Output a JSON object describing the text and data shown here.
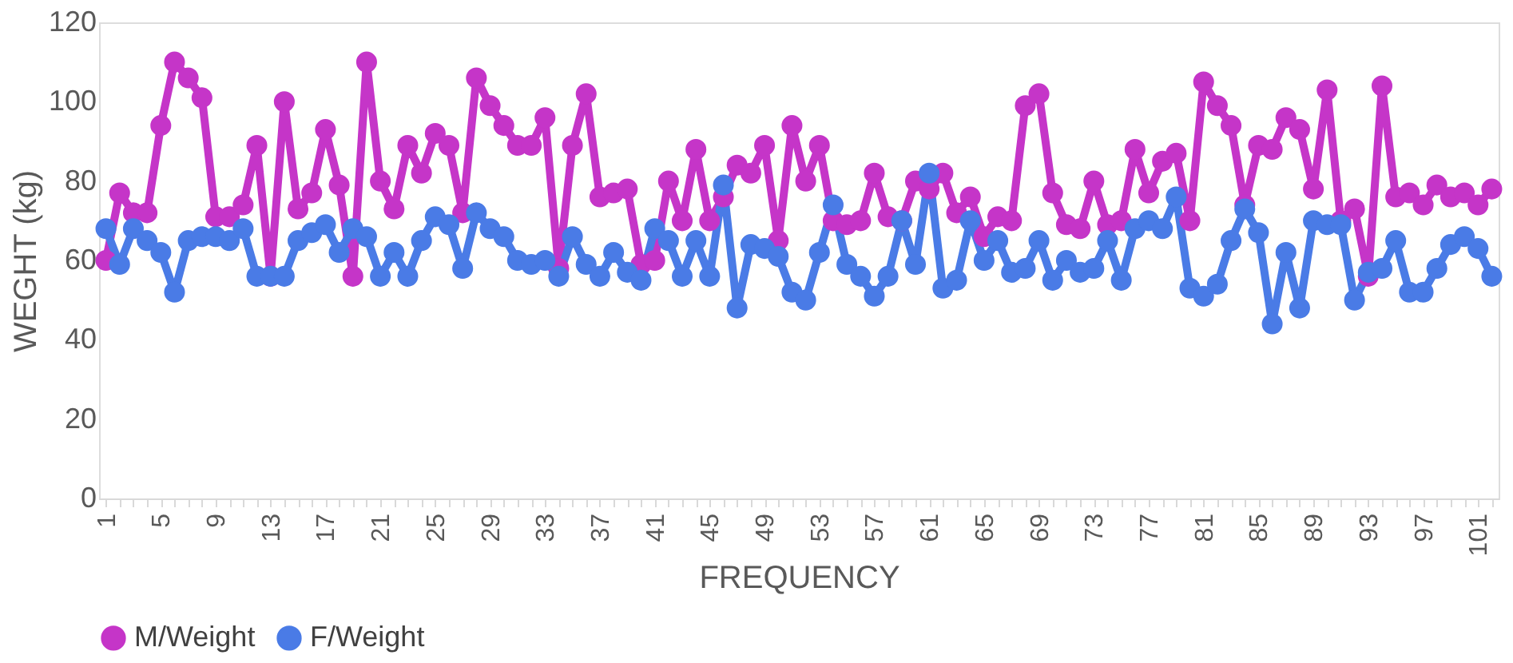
{
  "chart_data": {
    "type": "line",
    "xlabel": "FREQUENCY",
    "ylabel": "WEGHT (kg)",
    "categories": [
      "1",
      null,
      null,
      null,
      "5",
      null,
      null,
      null,
      "9",
      null,
      null,
      null,
      "13",
      null,
      null,
      null,
      "17",
      null,
      null,
      null,
      "21",
      null,
      null,
      null,
      "25",
      null,
      null,
      null,
      "29",
      null,
      null,
      null,
      "33",
      null,
      null,
      null,
      "37",
      null,
      null,
      null,
      "41",
      null,
      null,
      null,
      "45",
      null,
      null,
      null,
      "49",
      null,
      null,
      null,
      "53",
      null,
      null,
      null,
      "57",
      null,
      null,
      null,
      "61",
      null,
      null,
      null,
      "65",
      null,
      null,
      null,
      "69",
      null,
      null,
      null,
      "73",
      null,
      null,
      null,
      "77",
      null,
      null,
      null,
      "81",
      null,
      null,
      null,
      "85",
      null,
      null,
      null,
      "89",
      null,
      null,
      null,
      "93",
      null,
      null,
      null,
      "97",
      null,
      null,
      null,
      "101",
      null
    ],
    "series": [
      {
        "name": "M/Weight",
        "color": "#c535c8",
        "values": [
          60,
          77,
          72,
          72,
          94,
          110,
          106,
          101,
          71,
          71,
          74,
          89,
          56,
          100,
          73,
          77,
          93,
          79,
          56,
          110,
          80,
          73,
          89,
          82,
          92,
          89,
          72,
          106,
          99,
          94,
          89,
          89,
          96,
          58,
          89,
          102,
          76,
          77,
          78,
          59,
          60,
          80,
          70,
          88,
          70,
          76,
          84,
          82,
          89,
          65,
          94,
          80,
          89,
          70,
          69,
          70,
          82,
          71,
          70,
          80,
          78,
          82,
          72,
          76,
          66,
          71,
          70,
          99,
          102,
          77,
          69,
          68,
          80,
          69,
          70,
          88,
          77,
          85,
          87,
          70,
          105,
          99,
          94,
          74,
          89,
          88,
          96,
          93,
          78,
          103,
          70,
          73,
          56,
          104,
          76,
          77,
          74,
          79,
          76,
          77,
          74,
          78
        ]
      },
      {
        "name": "F/Weight",
        "color": "#4a7be6",
        "values": [
          68,
          59,
          68,
          65,
          62,
          52,
          65,
          66,
          66,
          65,
          68,
          56,
          56,
          56,
          65,
          67,
          69,
          62,
          68,
          66,
          56,
          62,
          56,
          65,
          71,
          69,
          58,
          72,
          68,
          66,
          60,
          59,
          60,
          56,
          66,
          59,
          56,
          62,
          57,
          55,
          68,
          65,
          56,
          65,
          56,
          79,
          48,
          64,
          63,
          61,
          52,
          50,
          62,
          74,
          59,
          56,
          51,
          56,
          70,
          59,
          82,
          53,
          55,
          70,
          60,
          65,
          57,
          58,
          65,
          55,
          60,
          57,
          58,
          65,
          55,
          68,
          70,
          68,
          76,
          53,
          51,
          54,
          65,
          73,
          67,
          44,
          62,
          48,
          70,
          69,
          69,
          50,
          57,
          58,
          65,
          52,
          52,
          58,
          64,
          66,
          63,
          56
        ]
      }
    ],
    "ylim": [
      0,
      120
    ],
    "yticks": [
      0,
      20,
      40,
      60,
      80,
      100,
      120
    ],
    "grid": false,
    "legend": "bottom",
    "marker": "circle",
    "line_style": "solid"
  }
}
